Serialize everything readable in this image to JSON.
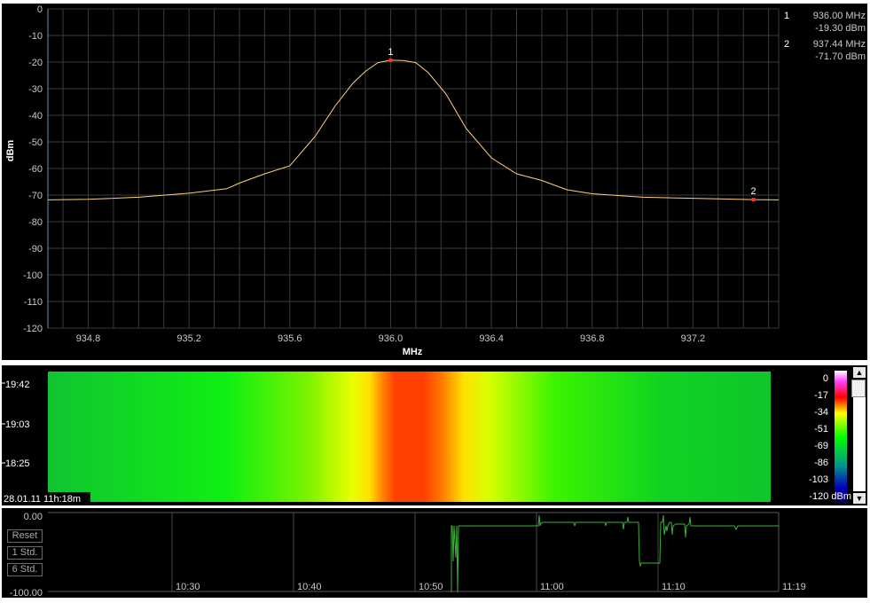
{
  "chart_data": [
    {
      "type": "line",
      "xlabel": "MHz",
      "ylabel": "dBm",
      "xlim": [
        934.64,
        937.54
      ],
      "ylim": [
        -120,
        0
      ],
      "xticks": [
        "934.8",
        "935.2",
        "935.6",
        "936.0",
        "936.4",
        "936.8",
        "937.2"
      ],
      "yticks": [
        "0",
        "-10",
        "-20",
        "-30",
        "-40",
        "-50",
        "-60",
        "-70",
        "-80",
        "-90",
        "-100",
        "-110",
        "-120"
      ],
      "grid": true,
      "trace_color": "#ffd27a",
      "series": [
        {
          "x": [
            934.64,
            934.8,
            935.0,
            935.2,
            935.35,
            935.4,
            935.5,
            935.6,
            935.7,
            935.78,
            935.85,
            935.9,
            935.95,
            936.0,
            936.05,
            936.1,
            936.15,
            936.22,
            936.3,
            936.4,
            936.5,
            936.6,
            936.7,
            936.8,
            937.0,
            937.2,
            937.44,
            937.54
          ],
          "y": [
            -71.8,
            -71.6,
            -70.8,
            -69.3,
            -67.6,
            -65.5,
            -62.0,
            -59.0,
            -48.0,
            -36.5,
            -28.0,
            -23.5,
            -20.2,
            -19.3,
            -19.4,
            -20.2,
            -24.0,
            -32.0,
            -45.0,
            -56.0,
            -62.0,
            -64.5,
            -68.0,
            -69.5,
            -70.8,
            -71.2,
            -71.7,
            -71.8
          ]
        }
      ],
      "markers": [
        {
          "label": "1",
          "freq": "936.00 MHz",
          "level": "-19.30 dBm",
          "x": 936.0,
          "y": -19.3
        },
        {
          "label": "2",
          "freq": "937.44 MHz",
          "level": "-71.70 dBm",
          "x": 937.44,
          "y": -71.7
        }
      ]
    },
    {
      "type": "heatmap",
      "time_labels": [
        "19:42",
        "19:03",
        "18:25"
      ],
      "timestamp": "28.01.11 11h:18m",
      "colorbar_labels": [
        "0",
        "-17",
        "-34",
        "-51",
        "-69",
        "-86",
        "-103",
        "-120 dBm"
      ]
    },
    {
      "type": "line",
      "ytop": "0.00",
      "ybottom": "-100.00",
      "xticks": [
        "10:30",
        "10:40",
        "10:50",
        "11:00",
        "11:10",
        "11:19"
      ],
      "trace_color": "#3ab03a"
    }
  ],
  "buttons": {
    "reset": "Reset",
    "one_std": "1 Std.",
    "six_std": "6 Std."
  }
}
